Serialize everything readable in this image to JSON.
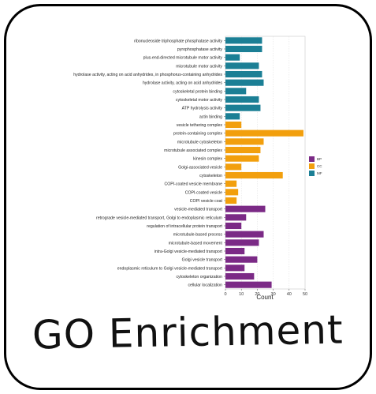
{
  "caption": "GO Enrichment",
  "chart_data": {
    "type": "bar",
    "orientation": "horizontal",
    "xlabel": "Count",
    "ylabel": "",
    "xlim": [
      0,
      50
    ],
    "xticks": [
      0,
      10,
      20,
      30,
      40,
      50
    ],
    "grid": true,
    "legend_position": "right",
    "series_colors": {
      "BP": "#7b2a86",
      "CC": "#f29f0d",
      "MF": "#1b7f95"
    },
    "legend": [
      "BP",
      "CC",
      "MF"
    ],
    "categories": [
      "ribonucleoside triphosphate phosphatase activity",
      "pyrophosphatase activity",
      "plus-end-directed microtubule motor activity",
      "microtubule motor activity",
      "hydrolase activity, acting on acid anhydrides, in phosphorus-containing anhydrides",
      "hydrolase activity, acting on acid anhydrides",
      "cytoskeletal protein binding",
      "cytoskeletal motor activity",
      "ATP hydrolysis activity",
      "actin binding",
      "vesicle tethering complex",
      "protein-containing complex",
      "microtubule cytoskeleton",
      "microtubule associated complex",
      "kinesin complex",
      "Golgi-associated vesicle",
      "cytoskeleton",
      "COPI-coated vesicle membrane",
      "COPI-coated vesicle",
      "COPI vesicle coat",
      "vesicle-mediated transport",
      "retrograde vesicle-mediated transport, Golgi to endoplasmic reticulum",
      "regulation of intracellular protein transport",
      "microtubule-based process",
      "microtubule-based movement",
      "intra-Golgi vesicle-mediated transport",
      "Golgi vesicle transport",
      "endoplasmic reticulum to Golgi vesicle-mediated transport",
      "cytoskeleton organization",
      "cellular localization"
    ],
    "values": [
      23,
      23,
      9,
      21,
      23,
      24,
      13,
      21,
      22,
      9,
      10,
      49,
      24,
      22,
      21,
      10,
      36,
      7,
      8,
      7,
      25,
      13,
      10,
      24,
      21,
      12,
      20,
      12,
      18,
      29
    ],
    "groups": [
      "MF",
      "MF",
      "MF",
      "MF",
      "MF",
      "MF",
      "MF",
      "MF",
      "MF",
      "MF",
      "CC",
      "CC",
      "CC",
      "CC",
      "CC",
      "CC",
      "CC",
      "CC",
      "CC",
      "CC",
      "BP",
      "BP",
      "BP",
      "BP",
      "BP",
      "BP",
      "BP",
      "BP",
      "BP",
      "BP"
    ]
  }
}
